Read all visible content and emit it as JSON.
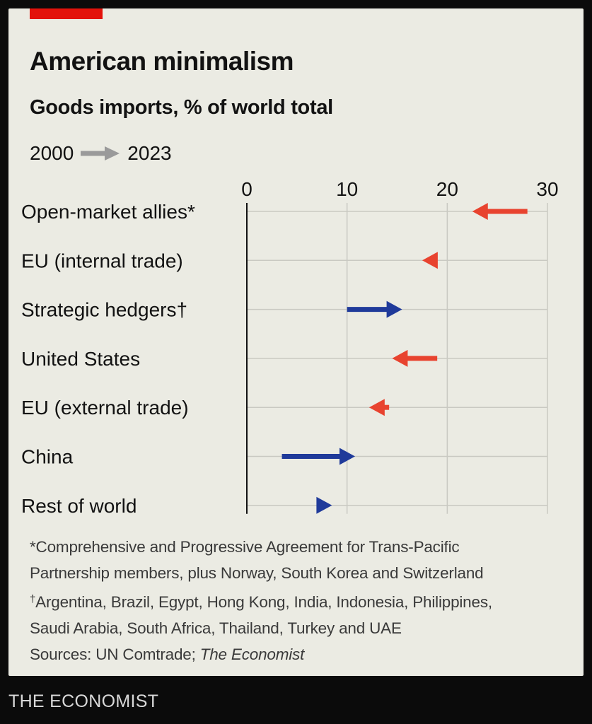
{
  "header": {
    "title": "American minimalism",
    "subtitle": "Goods imports, % of world total",
    "legend_from": "2000",
    "legend_to": "2023"
  },
  "colors": {
    "decrease": "#e8432f",
    "increase": "#1f3a9a",
    "accent": "#e3120b",
    "background": "#ebebe3",
    "legend_arrow": "#9a9a9a"
  },
  "chart_data": {
    "type": "arrow",
    "title": "American minimalism",
    "subtitle": "Goods imports, % of world total",
    "xlim": [
      0,
      30
    ],
    "x_ticks": [
      0,
      10,
      20,
      30
    ],
    "grid": true,
    "series": [
      {
        "name": "2000",
        "values": [
          28,
          18.5,
          10,
          19,
          14.2,
          3.5,
          7.2
        ]
      },
      {
        "name": "2023",
        "values": [
          22.5,
          17.5,
          15.5,
          14.5,
          12.2,
          10.8,
          8.5
        ]
      }
    ],
    "categories": [
      "Open-market allies*",
      "EU (internal trade)",
      "Strategic hedgers†",
      "United States",
      "EU (external trade)",
      "China",
      "Rest of world"
    ]
  },
  "footnotes": {
    "star_line1": "*Comprehensive and Progressive Agreement for Trans-Pacific",
    "star_line2": "Partnership members, plus Norway, South Korea and Switzerland",
    "dagger_mark": "†",
    "dagger_line1": "Argentina, Brazil, Egypt, Hong Kong, India, Indonesia, Philippines,",
    "dagger_line2": "Saudi Arabia, South Africa, Thailand, Turkey and UAE",
    "sources_prefix": "Sources: UN Comtrade; ",
    "sources_italic": "The Economist"
  },
  "footer": {
    "brand": "THE ECONOMIST"
  }
}
